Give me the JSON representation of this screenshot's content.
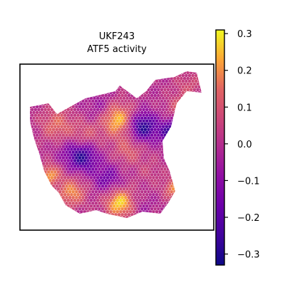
{
  "chart_data": {
    "type": "heatmap",
    "title": "UKF243",
    "subtitle": "ATF5 activity",
    "xlabel": "",
    "ylabel": "",
    "colormap": "plasma",
    "colorbar": {
      "range": [
        -0.33,
        0.31
      ],
      "ticks": [
        0.3,
        0.2,
        0.1,
        0.0,
        -0.1,
        -0.2,
        -0.3
      ],
      "tick_labels": [
        "0.3",
        "0.2",
        "0.1",
        "0.0",
        "−0.1",
        "−0.2",
        "−0.3"
      ]
    },
    "colors": {
      "low": "#0d0887",
      "mid": "#cc4778",
      "high": "#f0f921"
    },
    "regions_summary": {
      "value_range": [
        -0.33,
        0.31
      ],
      "typical_value": 0.0
    }
  }
}
